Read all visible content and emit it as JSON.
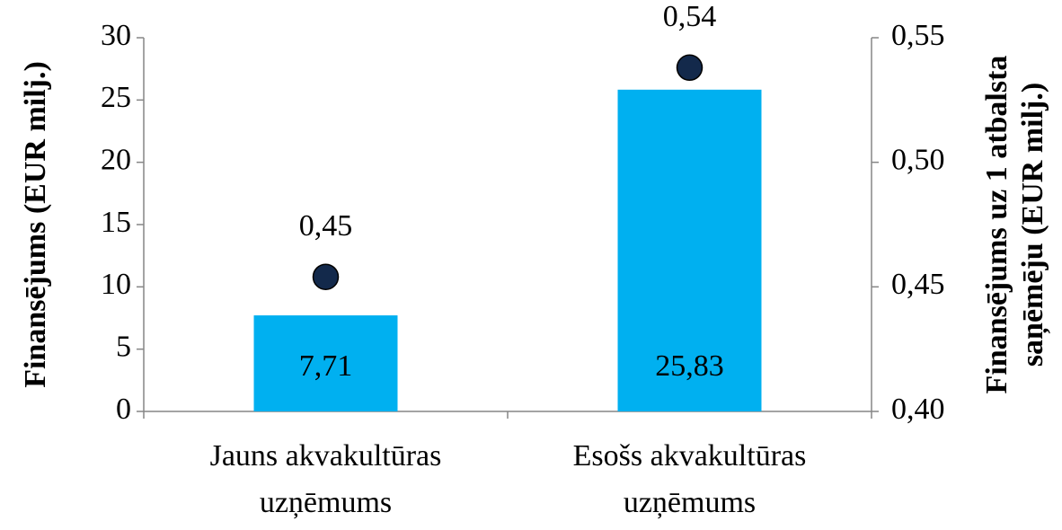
{
  "chart_data": {
    "type": "bar",
    "categories": [
      [
        "Jauns akvakultūras",
        "uzņēmums"
      ],
      [
        "Esošs akvakultūras",
        "uzņēmums"
      ]
    ],
    "ylabel": "Finansējums (EUR milj.)",
    "y2label": [
      "Finansējums uz 1 atbalsta",
      "saņēmēju (EUR milj.)"
    ],
    "series": [
      {
        "type": "bar",
        "color": "#00b0f0",
        "values": [
          7.71,
          25.83
        ],
        "value_labels": [
          "7,71",
          "25,83"
        ]
      },
      {
        "type": "scatter",
        "axis": "y2",
        "color": "#13294b",
        "values": [
          0.454,
          0.538
        ],
        "value_labels": [
          "0,45",
          "0,54"
        ]
      }
    ],
    "ylim": [
      0,
      30
    ],
    "yticks": [
      0,
      5,
      10,
      15,
      20,
      25,
      30
    ],
    "y2lim": [
      0.4,
      0.55
    ],
    "y2ticks": [
      {
        "value": 0.4,
        "label": "0,40"
      },
      {
        "value": 0.45,
        "label": "0,45"
      },
      {
        "value": 0.5,
        "label": "0,50"
      },
      {
        "value": 0.55,
        "label": "0,55"
      }
    ],
    "grid": false
  }
}
